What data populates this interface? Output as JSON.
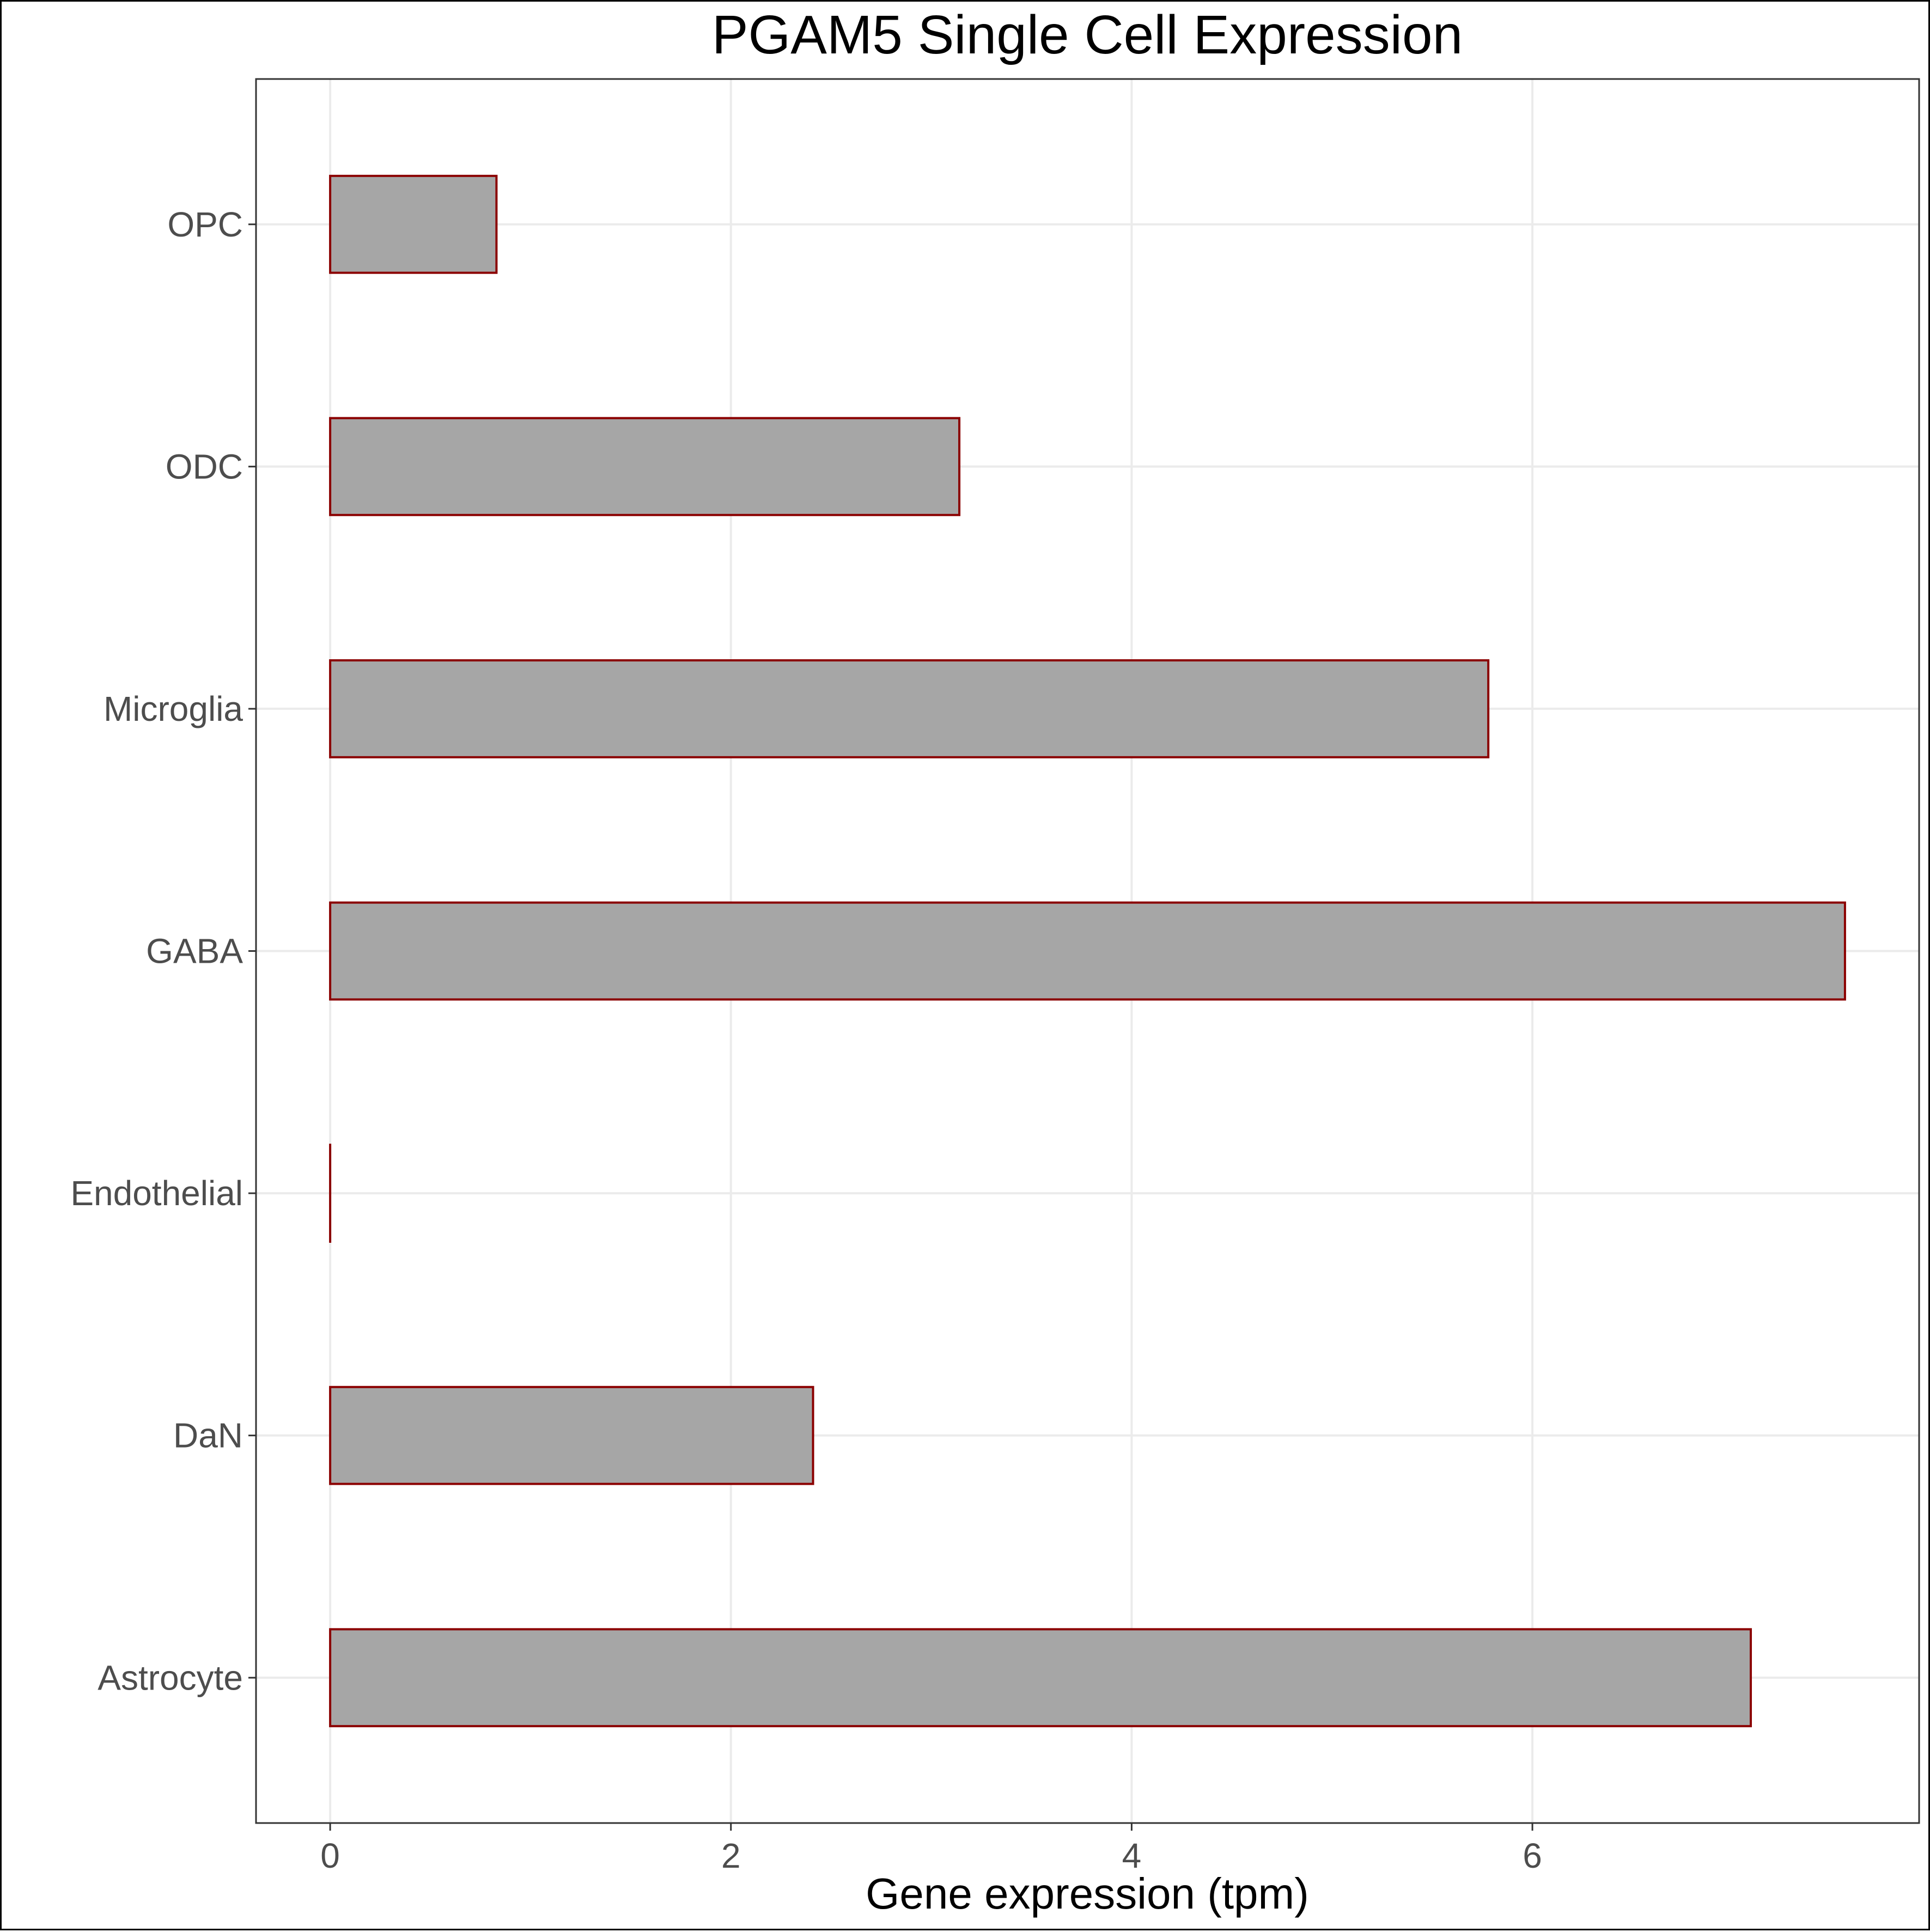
{
  "chart_data": {
    "type": "bar",
    "orientation": "horizontal",
    "title": "PGAM5 Single Cell Expression",
    "xlabel": "Gene expression (tpm)",
    "ylabel": "",
    "categories": [
      "Astrocyte",
      "DaN",
      "Endothelial",
      "GABA",
      "Microglia",
      "ODC",
      "OPC"
    ],
    "values": [
      7.09,
      2.41,
      0.0,
      7.56,
      5.78,
      3.14,
      0.83
    ],
    "xlim": [
      -0.37,
      7.93
    ],
    "xticks": [
      "0",
      "2",
      "4",
      "6"
    ],
    "grid": true,
    "legend": "none",
    "colors": {
      "bar_fill": "#a6a6a6",
      "bar_stroke": "#8b0000",
      "grid": "#ebebeb",
      "panel_border": "#333333"
    }
  }
}
